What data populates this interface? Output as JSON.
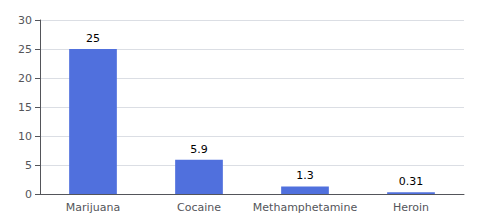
{
  "chart_data": {
    "type": "bar",
    "categories": [
      "Marijuana",
      "Cocaine",
      "Methamphetamine",
      "Heroin"
    ],
    "values": [
      25,
      5.9,
      1.3,
      0.31
    ],
    "ylim": [
      0,
      30
    ],
    "yticks": [
      0,
      5,
      10,
      15,
      20,
      25,
      30
    ],
    "grid": true,
    "data_labels": true
  }
}
